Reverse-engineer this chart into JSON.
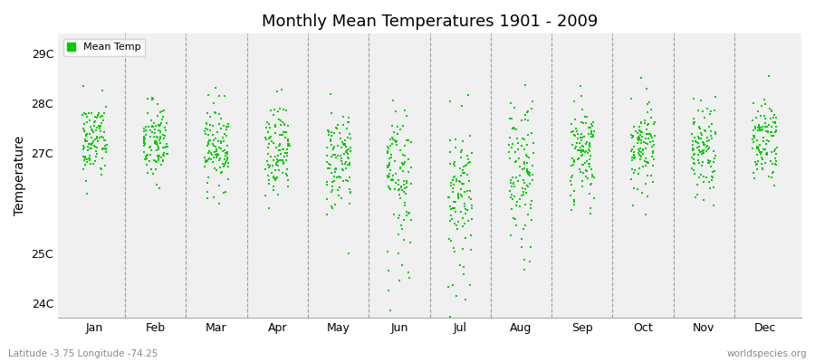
{
  "title": "Monthly Mean Temperatures 1901 - 2009",
  "ylabel": "Temperature",
  "yticks": [
    24,
    25,
    26,
    27,
    28,
    29
  ],
  "ytick_labels": [
    "24C",
    "25C",
    "",
    "27C",
    "28C",
    "29C"
  ],
  "ylim": [
    23.7,
    29.4
  ],
  "months": [
    "Jan",
    "Feb",
    "Mar",
    "Apr",
    "May",
    "Jun",
    "Jul",
    "Aug",
    "Sep",
    "Oct",
    "Nov",
    "Dec"
  ],
  "legend_label": "Mean Temp",
  "marker_color": "#00cc00",
  "bg_color": "#f0f0f0",
  "fig_color": "#ffffff",
  "subtitle_left": "Latitude -3.75 Longitude -74.25",
  "subtitle_right": "worldspecies.org",
  "seed": 42,
  "n_years": 109,
  "mean_temps": [
    27.25,
    27.2,
    27.15,
    27.1,
    26.9,
    26.5,
    26.4,
    26.7,
    27.0,
    27.1,
    27.15,
    27.25
  ],
  "std_temps": [
    0.4,
    0.42,
    0.42,
    0.45,
    0.55,
    0.65,
    0.72,
    0.65,
    0.5,
    0.45,
    0.45,
    0.42
  ],
  "skew": [
    0.0,
    0.0,
    0.0,
    -0.3,
    -0.5,
    -1.0,
    -1.2,
    -0.8,
    -0.3,
    0.0,
    0.0,
    0.0
  ]
}
